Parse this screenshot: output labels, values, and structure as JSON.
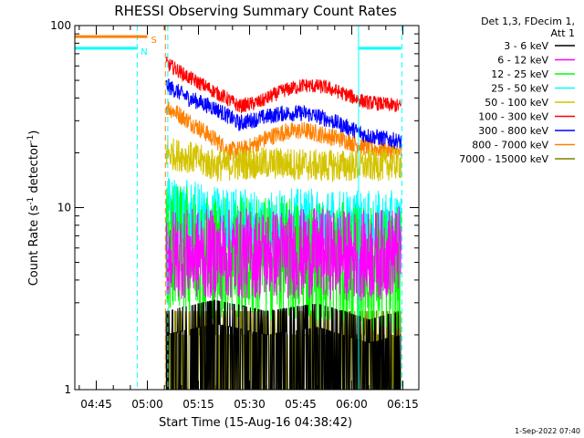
{
  "chart_data": {
    "type": "line",
    "title": "RHESSI Observing Summary Count Rates",
    "xlabel": "Start Time (15-Aug-16 04:38:42)",
    "ylabel_prefix": "Count Rate (s",
    "ylabel_exp1": "-1",
    "ylabel_mid": " detector",
    "ylabel_exp2": "-1",
    "ylabel_suffix": ")",
    "yscale": "log",
    "ylim": [
      1,
      100
    ],
    "xlim_minutes": [
      278.7,
      379.7
    ],
    "x_ticks": [
      {
        "m": 285,
        "label": "04:45"
      },
      {
        "m": 300,
        "label": "05:00"
      },
      {
        "m": 315,
        "label": "05:15"
      },
      {
        "m": 330,
        "label": "05:30"
      },
      {
        "m": 345,
        "label": "05:45"
      },
      {
        "m": 360,
        "label": "06:00"
      },
      {
        "m": 375,
        "label": "06:15"
      }
    ],
    "y_ticks": [
      {
        "v": 1,
        "label": "1"
      },
      {
        "v": 10,
        "label": "10"
      },
      {
        "v": 100,
        "label": "100"
      }
    ],
    "legend_header": [
      "Det 1,3, FDecim 1,",
      "Att 1"
    ],
    "legend_position": "right",
    "series": [
      {
        "name": "3 - 6 keV",
        "color": "#000000",
        "points": [
          [
            305.5,
            2.0
          ],
          [
            320,
            2.3
          ],
          [
            335,
            2.0
          ],
          [
            350,
            2.2
          ],
          [
            365,
            1.8
          ],
          [
            374.5,
            2.0
          ]
        ],
        "noise": 0.9
      },
      {
        "name": "6 - 12 keV",
        "color": "#ff00ff",
        "points": [
          [
            305.5,
            5.6
          ],
          [
            320,
            5.5
          ],
          [
            335,
            5.6
          ],
          [
            350,
            5.6
          ],
          [
            365,
            5.4
          ],
          [
            374.5,
            5.8
          ]
        ],
        "noise": 0.25
      },
      {
        "name": "12 - 25 keV",
        "color": "#00ff00",
        "points": [
          [
            305.5,
            6.2
          ],
          [
            320,
            5.4
          ],
          [
            335,
            5.2
          ],
          [
            350,
            5.0
          ],
          [
            365,
            4.6
          ],
          [
            374.5,
            4.5
          ]
        ],
        "noise": 0.35
      },
      {
        "name": "25 - 50 keV",
        "color": "#00ffff",
        "points": [
          [
            305.5,
            9.5
          ],
          [
            320,
            8.3
          ],
          [
            335,
            8.0
          ],
          [
            350,
            8.1
          ],
          [
            365,
            7.8
          ],
          [
            374.5,
            7.9
          ]
        ],
        "noise": 0.2
      },
      {
        "name": "50 - 100 keV",
        "color": "#d4c400",
        "points": [
          [
            305.5,
            20
          ],
          [
            312,
            19
          ],
          [
            320,
            17
          ],
          [
            330,
            17.5
          ],
          [
            340,
            17.5
          ],
          [
            350,
            17
          ],
          [
            365,
            17
          ],
          [
            374.5,
            17.5
          ]
        ],
        "noise": 0.09
      },
      {
        "name": "100 - 300 keV",
        "color": "#ff0000",
        "points": [
          [
            305.5,
            62
          ],
          [
            312,
            52
          ],
          [
            320,
            43
          ],
          [
            327,
            36
          ],
          [
            333,
            38
          ],
          [
            340,
            44
          ],
          [
            346,
            47
          ],
          [
            352,
            46
          ],
          [
            358,
            42
          ],
          [
            364,
            38
          ],
          [
            374.5,
            36
          ]
        ],
        "noise": 0.04
      },
      {
        "name": "300 - 800 keV",
        "color": "#0000ff",
        "points": [
          [
            305.5,
            47
          ],
          [
            312,
            40
          ],
          [
            320,
            35
          ],
          [
            327,
            29
          ],
          [
            333,
            31
          ],
          [
            340,
            33
          ],
          [
            346,
            33
          ],
          [
            352,
            31
          ],
          [
            358,
            28
          ],
          [
            364,
            25
          ],
          [
            374.5,
            23
          ]
        ],
        "noise": 0.045
      },
      {
        "name": "800 - 7000 keV",
        "color": "#ff8000",
        "points": [
          [
            305.5,
            36
          ],
          [
            312,
            30
          ],
          [
            318,
            25
          ],
          [
            324,
            20.5
          ],
          [
            329,
            21
          ],
          [
            335,
            24
          ],
          [
            340,
            26
          ],
          [
            346,
            26.5
          ],
          [
            352,
            25
          ],
          [
            358,
            23.5
          ],
          [
            364,
            21.5
          ],
          [
            374.5,
            20
          ]
        ],
        "noise": 0.05
      },
      {
        "name": "7000 - 15000 keV",
        "color": "#808000",
        "points": [
          [
            305.5,
            2.0
          ],
          [
            374.5,
            2.0
          ]
        ],
        "noise": 0.6
      }
    ],
    "segments": [
      {
        "label": "N",
        "color": "#00ffff",
        "x0": 278.7,
        "x1": 297,
        "y": 75
      },
      {
        "label": "S",
        "color": "#ff8000",
        "x0": 278.7,
        "x1": 300,
        "y": 87
      },
      {
        "label": "",
        "color": "#00ffff",
        "x0": 362,
        "x1": 374.5,
        "y": 75
      }
    ],
    "vlines": [
      {
        "m": 297,
        "color": "#00ffff",
        "style": "dashed"
      },
      {
        "m": 305.3,
        "color": "#ff8000",
        "style": "dashed"
      },
      {
        "m": 306.0,
        "color": "#00ffff",
        "style": "dashed"
      },
      {
        "m": 362,
        "color": "#00ffff",
        "style": "solid"
      },
      {
        "m": 374.7,
        "color": "#00ffff",
        "style": "dashed"
      }
    ]
  },
  "footer": {
    "date": "1-Sep-2022 07:40"
  }
}
